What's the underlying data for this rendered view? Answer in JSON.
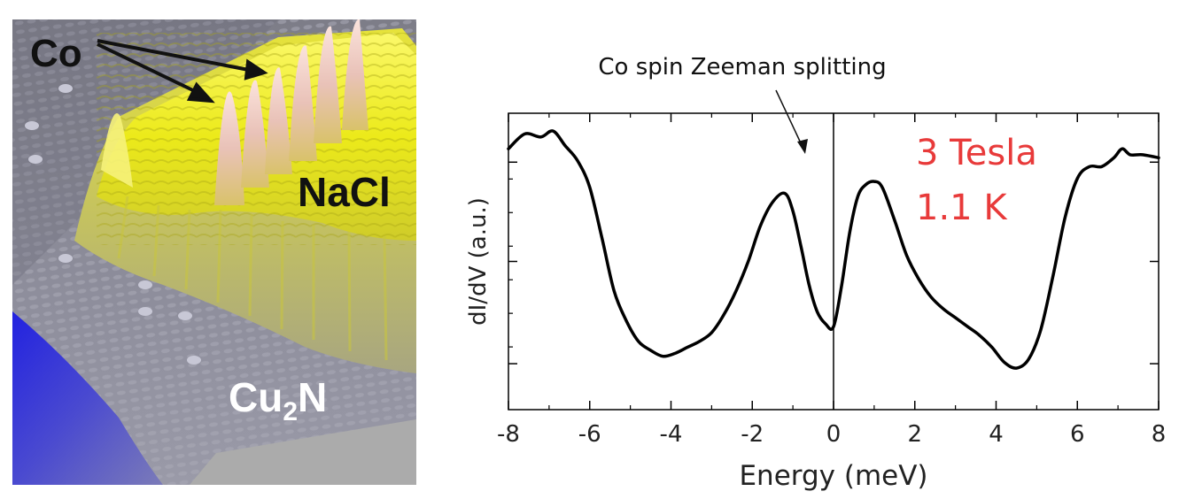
{
  "stm_image": {
    "labels": {
      "co": "Co",
      "nacl": "NaCl",
      "cu2n_main": "Cu",
      "cu2n_sub": "2",
      "cu2n_end": "N"
    },
    "colors": {
      "substrate": "#8e8e9c",
      "nacl": "#f0ee1c",
      "adatom_peak": "#f3c9c2",
      "deep": "#1b1bd8"
    }
  },
  "chart_data": {
    "type": "line",
    "xlabel": "Energy (meV)",
    "ylabel": "dI/dV (a.u.)",
    "xlim": [
      -8,
      8
    ],
    "ylim": [
      0,
      1
    ],
    "x_ticks": [
      -8,
      -6,
      -4,
      -2,
      0,
      2,
      4,
      6,
      8
    ],
    "x_tick_labels": [
      "-8",
      "-6",
      "-4",
      "-2",
      "0",
      "2",
      "4",
      "6",
      "8"
    ],
    "y_tick_labels": [],
    "grid": false,
    "annotation": "Co spin Zeeman splitting",
    "conditions": [
      "3 Tesla",
      "1.1 K"
    ],
    "condition_color": "#e83a3a",
    "line_color": "#000000",
    "series": [
      {
        "x": [
          -8.0,
          -7.6,
          -7.2,
          -6.9,
          -6.6,
          -6.3,
          -6.0,
          -5.7,
          -5.4,
          -5.1,
          -4.8,
          -4.5,
          -4.2,
          -3.9,
          -3.6,
          -3.3,
          -3.0,
          -2.7,
          -2.4,
          -2.1,
          -1.8,
          -1.5,
          -1.2,
          -1.0,
          -0.8,
          -0.6,
          -0.4,
          -0.2,
          0.0,
          0.2,
          0.4,
          0.6,
          0.8,
          1.0,
          1.2,
          1.5,
          1.8,
          2.1,
          2.4,
          2.7,
          3.0,
          3.3,
          3.6,
          3.9,
          4.2,
          4.5,
          4.8,
          5.1,
          5.4,
          5.7,
          6.0,
          6.3,
          6.6,
          6.9,
          7.1,
          7.3,
          7.6,
          8.0
        ],
        "y": [
          0.88,
          0.93,
          0.92,
          0.94,
          0.89,
          0.84,
          0.75,
          0.58,
          0.4,
          0.3,
          0.23,
          0.2,
          0.18,
          0.19,
          0.21,
          0.23,
          0.26,
          0.32,
          0.4,
          0.5,
          0.62,
          0.7,
          0.73,
          0.67,
          0.55,
          0.42,
          0.33,
          0.29,
          0.28,
          0.42,
          0.6,
          0.72,
          0.76,
          0.77,
          0.75,
          0.64,
          0.52,
          0.44,
          0.38,
          0.34,
          0.31,
          0.28,
          0.25,
          0.21,
          0.16,
          0.14,
          0.17,
          0.27,
          0.45,
          0.65,
          0.78,
          0.82,
          0.82,
          0.85,
          0.88,
          0.86,
          0.86,
          0.85
        ]
      }
    ]
  }
}
